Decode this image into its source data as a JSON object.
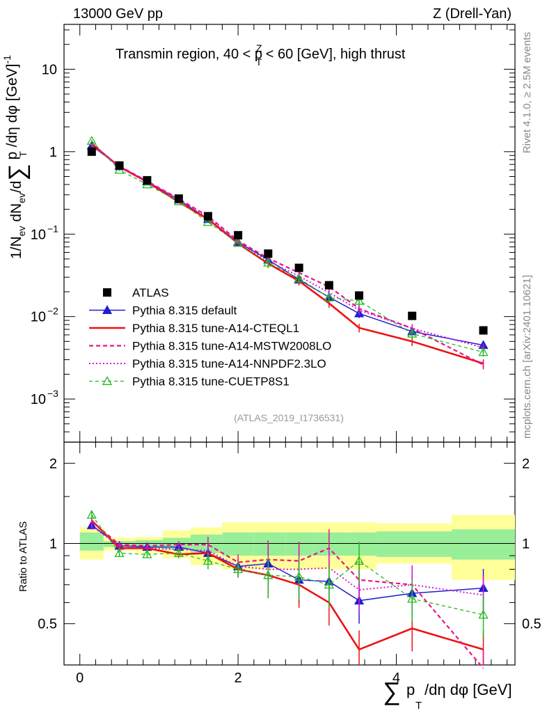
{
  "header": {
    "energy": "13000 GeV pp",
    "process": "Z (Drell-Yan)",
    "title": "Transmin region, 40 < p",
    "title_sup": "Z",
    "title_sub": "T",
    "title_end": " < 60 [GeV], high thrust"
  },
  "side": {
    "rivet": "Rivet 4.1.0, ≥ 2.5M events",
    "mcplots": "mcplots.cern.ch [arXiv:2401.10621]"
  },
  "analysis_id": "(ATLAS_2019_I1736531)",
  "axes": {
    "top_ylabel": "1/N",
    "ratio_ylabel": "Ratio to ATLAS",
    "xlabel": "/dη dφ [GeV]",
    "top_yticks": [
      "10",
      "1",
      "10",
      "10",
      "10"
    ],
    "top_ytick_sup": [
      "",
      "",
      "−1",
      "−2",
      "−3"
    ],
    "ratio_yticks": [
      "2",
      "1",
      "0.5"
    ],
    "xticks": [
      "0",
      "2",
      "4"
    ]
  },
  "legend": [
    {
      "label": "ATLAS",
      "color": "#000000"
    },
    {
      "label": "Pythia 8.315 default",
      "color": "#1f1fd0"
    },
    {
      "label": "Pythia 8.315 tune-A14-CTEQL1",
      "color": "#ee1111"
    },
    {
      "label": "Pythia 8.315 tune-A14-MSTW2008LO",
      "color": "#e8148a"
    },
    {
      "label": "Pythia 8.315 tune-A14-NNPDF2.3LO",
      "color": "#d616d6"
    },
    {
      "label": "Pythia 8.315 tune-CUETP8S1",
      "color": "#22bb22"
    }
  ],
  "chart_data": {
    "type": "line",
    "title": "Transmin region, 40 < pT^Z < 60 [GeV], high thrust",
    "xlabel": "Σ pT /dη dφ [GeV]",
    "ylabel": "1/Nev dNev/dΣ pT /dη dφ [GeV]^-1",
    "yscale": "log",
    "xlim": [
      -0.2,
      5.5
    ],
    "ylim": [
      0.0003,
      35
    ],
    "ratio_ylim": [
      0.35,
      2.4
    ],
    "bin_edges": [
      0,
      0.3,
      0.7,
      1.05,
      1.4,
      1.8,
      2.2,
      2.6,
      2.95,
      3.35,
      3.75,
      4.7,
      5.5
    ],
    "x": [
      0.15,
      0.5,
      0.85,
      1.25,
      1.62,
      2.0,
      2.38,
      2.77,
      3.15,
      3.53,
      4.2,
      5.1
    ],
    "series": [
      {
        "name": "ATLAS",
        "color": "#000000",
        "values": [
          1.0,
          0.68,
          0.45,
          0.27,
          0.165,
          0.097,
          0.058,
          0.039,
          0.024,
          0.018,
          0.0102,
          0.0068
        ]
      },
      {
        "name": "Pythia 8.315 default",
        "color": "#1f1fd0",
        "values": [
          1.18,
          0.665,
          0.435,
          0.262,
          0.152,
          0.08,
          0.049,
          0.028,
          0.0172,
          0.0109,
          0.0066,
          0.0045
        ],
        "ratio": [
          1.17,
          0.98,
          0.97,
          0.97,
          0.92,
          0.82,
          0.84,
          0.73,
          0.72,
          0.61,
          0.65,
          0.68
        ]
      },
      {
        "name": "Pythia 8.315 tune-A14-CTEQL1",
        "color": "#ee1111",
        "values": [
          1.25,
          0.655,
          0.43,
          0.245,
          0.152,
          0.077,
          0.044,
          0.027,
          0.0145,
          0.0073,
          0.005,
          0.0027
        ],
        "ratio": [
          1.22,
          0.96,
          0.96,
          0.91,
          0.92,
          0.8,
          0.76,
          0.7,
          0.6,
          0.4,
          0.48,
          0.4
        ]
      },
      {
        "name": "Pythia 8.315 tune-A14-MSTW2008LO",
        "color": "#e8148a",
        "values": [
          1.2,
          0.67,
          0.44,
          0.268,
          0.165,
          0.083,
          0.051,
          0.034,
          0.023,
          0.0125,
          0.0072,
          0.0026
        ],
        "ratio": [
          1.21,
          0.99,
          0.98,
          0.99,
          0.99,
          0.85,
          0.87,
          0.86,
          0.96,
          0.73,
          0.7,
          0.34
        ]
      },
      {
        "name": "Pythia 8.315 tune-A14-NNPDF2.3LO",
        "color": "#d616d6",
        "values": [
          1.18,
          0.665,
          0.435,
          0.26,
          0.158,
          0.08,
          0.047,
          0.031,
          0.0195,
          0.012,
          0.0072,
          0.0042
        ],
        "ratio": [
          1.16,
          0.98,
          0.96,
          0.95,
          0.94,
          0.82,
          0.8,
          0.8,
          0.81,
          0.67,
          0.7,
          0.64
        ]
      },
      {
        "name": "Pythia 8.315 tune-CUETP8S1",
        "color": "#22bb22",
        "values": [
          1.35,
          0.6,
          0.4,
          0.25,
          0.14,
          0.078,
          0.045,
          0.029,
          0.017,
          0.0155,
          0.0062,
          0.0037
        ],
        "ratio": [
          1.28,
          0.92,
          0.91,
          0.92,
          0.86,
          0.8,
          0.76,
          0.75,
          0.7,
          0.86,
          0.62,
          0.54
        ]
      }
    ],
    "ratio_band_inner": [
      [
        0.94,
        1.1
      ],
      [
        0.97,
        1.02
      ],
      [
        0.96,
        1.03
      ],
      [
        0.95,
        1.05
      ],
      [
        0.92,
        1.08
      ],
      [
        0.9,
        1.1
      ],
      [
        0.9,
        1.1
      ],
      [
        0.9,
        1.1
      ],
      [
        0.9,
        1.1
      ],
      [
        0.9,
        1.1
      ],
      [
        0.89,
        1.11
      ],
      [
        0.87,
        1.13
      ]
    ],
    "ratio_band_outer": [
      [
        0.87,
        1.15
      ],
      [
        0.94,
        1.05
      ],
      [
        0.92,
        1.06
      ],
      [
        0.88,
        1.12
      ],
      [
        0.83,
        1.15
      ],
      [
        0.8,
        1.2
      ],
      [
        0.8,
        1.2
      ],
      [
        0.8,
        1.2
      ],
      [
        0.8,
        1.2
      ],
      [
        0.8,
        1.2
      ],
      [
        0.84,
        1.19
      ],
      [
        0.73,
        1.28
      ]
    ]
  }
}
